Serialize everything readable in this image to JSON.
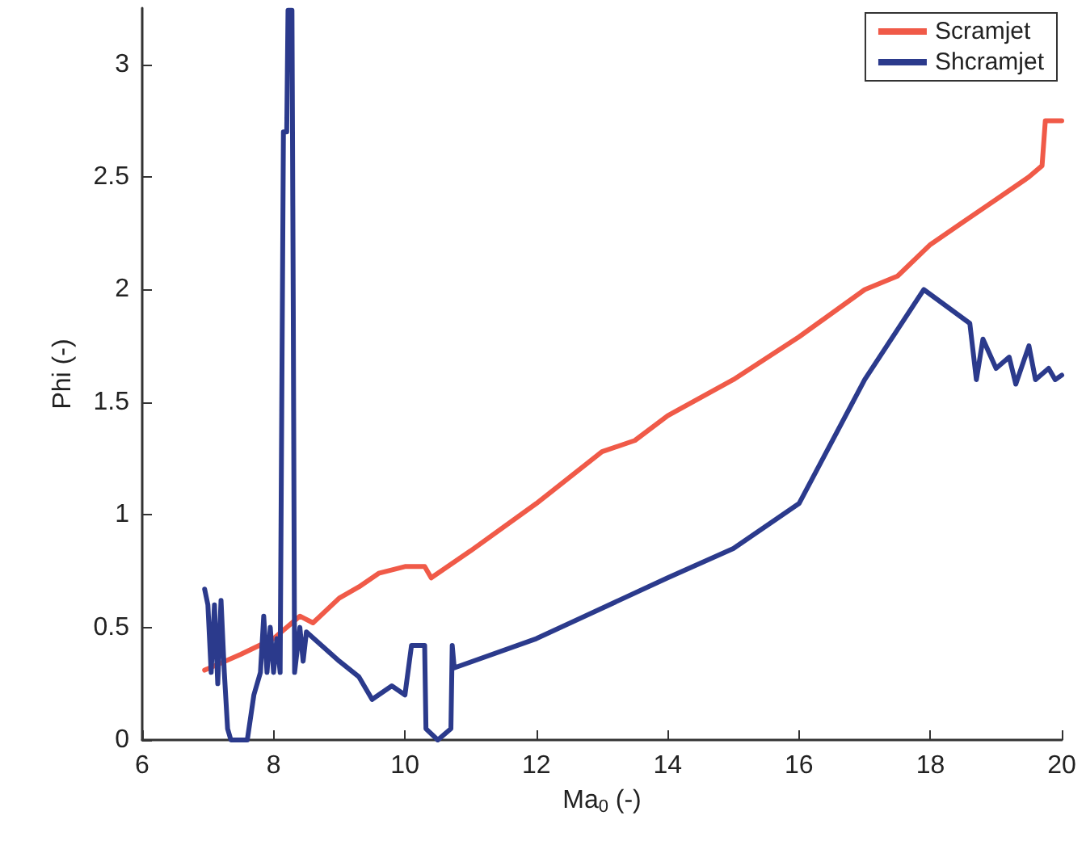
{
  "chart_data": {
    "type": "line",
    "xlabel": "Ma$_{0}$ (-)",
    "ylabel": "Phi (-)",
    "xlim": [
      6,
      20
    ],
    "xticks": [
      6,
      8,
      10,
      12,
      14,
      16,
      18,
      20
    ],
    "ylim": [
      0,
      3.25
    ],
    "yticks": [
      0,
      0.5,
      1,
      1.5,
      2,
      2.5,
      3
    ],
    "grid": false,
    "legend": "top right",
    "marker": "none",
    "line_style": "solid",
    "series": [
      {
        "name": "Scramjet",
        "color": "#f05a48",
        "x": [
          6.95,
          7.5,
          8,
          8.4,
          8.6,
          9,
          9.3,
          9.6,
          10,
          10.3,
          10.4,
          11,
          12,
          13,
          13.5,
          14,
          15,
          16,
          17,
          17.5,
          18,
          18.5,
          19,
          19.5,
          19.7,
          19.75,
          20
        ],
        "values": [
          0.31,
          0.38,
          0.45,
          0.55,
          0.52,
          0.63,
          0.68,
          0.74,
          0.77,
          0.77,
          0.72,
          0.84,
          1.05,
          1.28,
          1.33,
          1.44,
          1.6,
          1.79,
          2.0,
          2.06,
          2.2,
          2.3,
          2.4,
          2.5,
          2.55,
          2.75,
          2.75
        ]
      },
      {
        "name": "Shcramjet",
        "color": "#2b3a8c",
        "x": [
          6.95,
          7.0,
          7.05,
          7.1,
          7.15,
          7.2,
          7.25,
          7.3,
          7.35,
          7.6,
          7.7,
          7.8,
          7.85,
          7.9,
          7.95,
          8.0,
          8.05,
          8.1,
          8.15,
          8.2,
          8.22,
          8.28,
          8.3,
          8.32,
          8.4,
          8.45,
          8.5,
          9.0,
          9.3,
          9.5,
          9.8,
          10.0,
          10.1,
          10.3,
          10.32,
          10.5,
          10.7,
          10.72,
          10.75,
          12,
          14,
          15,
          16,
          17,
          17.9,
          18.6,
          18.7,
          18.8,
          19,
          19.2,
          19.3,
          19.5,
          19.6,
          19.8,
          19.9,
          20
        ],
        "values": [
          0.67,
          0.6,
          0.3,
          0.6,
          0.25,
          0.62,
          0.3,
          0.05,
          0.0,
          0.0,
          0.2,
          0.3,
          0.55,
          0.3,
          0.5,
          0.3,
          0.45,
          0.3,
          2.7,
          2.7,
          3.24,
          3.24,
          1.9,
          0.3,
          0.5,
          0.35,
          0.48,
          0.35,
          0.28,
          0.18,
          0.24,
          0.2,
          0.42,
          0.42,
          0.05,
          0.0,
          0.05,
          0.42,
          0.32,
          0.45,
          0.72,
          0.85,
          1.05,
          1.6,
          2.0,
          1.85,
          1.6,
          1.78,
          1.65,
          1.7,
          1.58,
          1.75,
          1.6,
          1.65,
          1.6,
          1.62
        ]
      }
    ]
  }
}
